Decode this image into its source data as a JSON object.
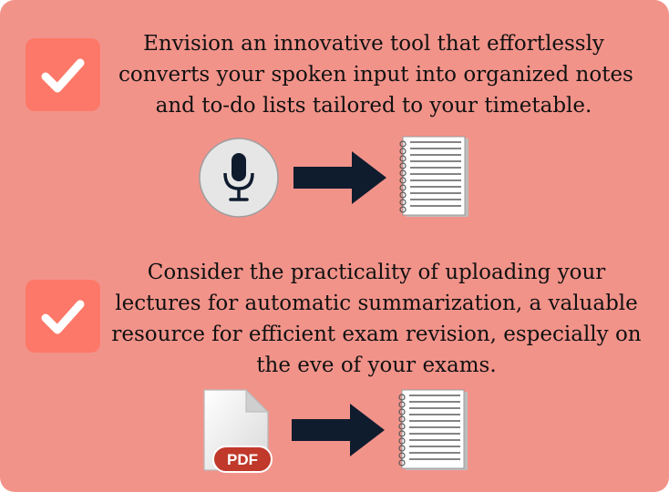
{
  "colors": {
    "card_background": "#f2938a",
    "checkbox": "#fd7868",
    "arrow": "#0f1c2e",
    "mic_background": "#e6e6e6",
    "pdf_badge": "#c0392b"
  },
  "item1": {
    "icon": "checkbox-checked-icon",
    "lines": [
      "Envision an innovative tool that effortlessly",
      "converts your spoken input into organized notes",
      "and to-do lists tailored to your timetable."
    ],
    "from_icon": "microphone-icon",
    "to_icon": "notepad-icon"
  },
  "item2": {
    "icon": "checkbox-checked-icon",
    "lines": [
      "Consider the practicality of uploading your",
      "lectures for automatic summarization, a valuable",
      "resource for efficient exam revision, especially on",
      "the eve of your exams."
    ],
    "from_icon": "pdf-file-icon",
    "pdf_label": "PDF",
    "to_icon": "notepad-icon"
  }
}
